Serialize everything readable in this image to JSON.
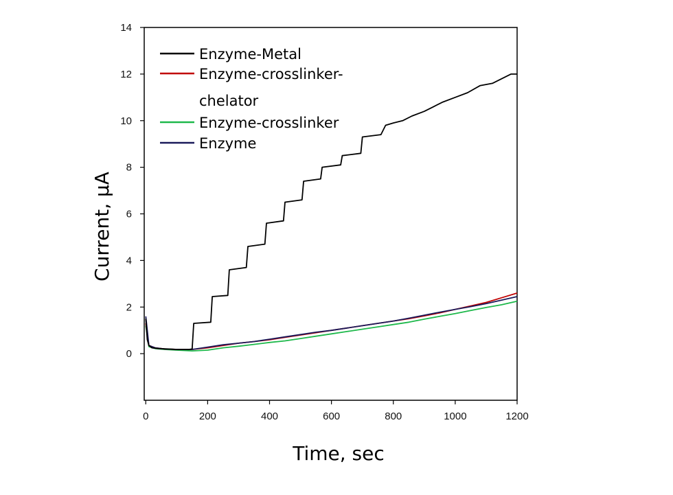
{
  "chart_data": {
    "type": "line",
    "title": "",
    "xlabel": "Time, sec",
    "ylabel": "Current, µA",
    "xlim": [
      -5,
      1200
    ],
    "ylim": [
      -2,
      14
    ],
    "xticks": [
      0,
      200,
      400,
      600,
      800,
      1000,
      1200
    ],
    "yticks": [
      0,
      2,
      4,
      6,
      8,
      10,
      12,
      14
    ],
    "grid": false,
    "legend_position": "top-left",
    "series": [
      {
        "name": "Enzyme-Metal",
        "color": "#000000",
        "legend_lines": [
          "Enzyme-Metal"
        ],
        "x": [
          0,
          5,
          10,
          20,
          40,
          70,
          100,
          140,
          150,
          155,
          210,
          215,
          265,
          270,
          325,
          330,
          385,
          390,
          445,
          450,
          505,
          510,
          565,
          570,
          630,
          635,
          695,
          700,
          760,
          775,
          800,
          830,
          860,
          900,
          930,
          960,
          1000,
          1040,
          1080,
          1120,
          1150,
          1180,
          1200
        ],
        "y": [
          1.5,
          0.6,
          0.35,
          0.25,
          0.22,
          0.2,
          0.18,
          0.18,
          0.2,
          1.3,
          1.35,
          2.45,
          2.5,
          3.6,
          3.7,
          4.6,
          4.7,
          5.6,
          5.7,
          6.5,
          6.6,
          7.4,
          7.5,
          8.0,
          8.1,
          8.5,
          8.6,
          9.3,
          9.4,
          9.8,
          9.9,
          10.0,
          10.2,
          10.4,
          10.6,
          10.8,
          11.0,
          11.2,
          11.5,
          11.6,
          11.8,
          12.0,
          12.0
        ]
      },
      {
        "name": "Enzyme-crosslinker-chelator",
        "color": "#c00000",
        "legend_lines": [
          "Enzyme-crosslinker-",
          "chelator"
        ],
        "x": [
          0,
          10,
          30,
          60,
          100,
          150,
          200,
          250,
          300,
          350,
          400,
          450,
          500,
          550,
          600,
          650,
          700,
          750,
          800,
          850,
          900,
          950,
          1000,
          1050,
          1100,
          1150,
          1200
        ],
        "y": [
          1.3,
          0.35,
          0.25,
          0.2,
          0.18,
          0.18,
          0.25,
          0.35,
          0.45,
          0.52,
          0.6,
          0.7,
          0.8,
          0.9,
          1.0,
          1.1,
          1.2,
          1.3,
          1.4,
          1.5,
          1.62,
          1.75,
          1.9,
          2.05,
          2.2,
          2.4,
          2.6
        ]
      },
      {
        "name": "Enzyme-crosslinker",
        "color": "#1db84a",
        "legend_lines": [
          "Enzyme-crosslinker"
        ],
        "x": [
          0,
          10,
          30,
          60,
          100,
          150,
          200,
          250,
          300,
          350,
          400,
          450,
          500,
          550,
          600,
          650,
          700,
          750,
          800,
          850,
          900,
          950,
          1000,
          1050,
          1100,
          1150,
          1200
        ],
        "y": [
          1.2,
          0.3,
          0.22,
          0.18,
          0.15,
          0.12,
          0.15,
          0.25,
          0.32,
          0.4,
          0.48,
          0.55,
          0.65,
          0.75,
          0.85,
          0.95,
          1.05,
          1.15,
          1.25,
          1.35,
          1.48,
          1.6,
          1.72,
          1.85,
          1.98,
          2.1,
          2.25
        ]
      },
      {
        "name": "Enzyme",
        "color": "#1a1a5a",
        "legend_lines": [
          "Enzyme"
        ],
        "x": [
          0,
          10,
          30,
          60,
          100,
          150,
          200,
          250,
          300,
          350,
          400,
          450,
          500,
          550,
          600,
          650,
          700,
          750,
          800,
          850,
          900,
          950,
          1000,
          1050,
          1100,
          1150,
          1200
        ],
        "y": [
          1.6,
          0.35,
          0.25,
          0.2,
          0.18,
          0.18,
          0.28,
          0.38,
          0.45,
          0.52,
          0.62,
          0.72,
          0.82,
          0.92,
          1.0,
          1.1,
          1.2,
          1.3,
          1.4,
          1.52,
          1.65,
          1.78,
          1.9,
          2.02,
          2.15,
          2.3,
          2.45
        ]
      }
    ]
  }
}
